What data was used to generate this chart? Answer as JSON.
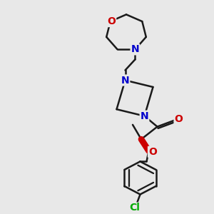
{
  "bg_color": "#e8e8e8",
  "bond_color": "#1a1a1a",
  "N_color": "#0000cc",
  "O_color": "#cc0000",
  "Cl_color": "#00aa00",
  "line_width": 1.8,
  "font_size": 10,
  "xlim": [
    0,
    10
  ],
  "ylim": [
    0,
    11
  ]
}
